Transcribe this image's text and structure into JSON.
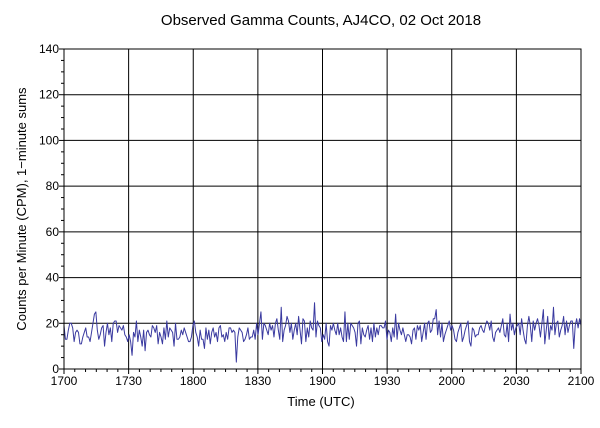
{
  "chart_data": {
    "type": "line",
    "title": "Observed Gamma Counts, AJ4CO, 02 Oct 2018",
    "xlabel": "Time (UTC)",
    "ylabel": "Counts per Minute (CPM), 1−minute sums",
    "x_tick_labels": [
      "1700",
      "1730",
      "1800",
      "1830",
      "1900",
      "1930",
      "2000",
      "2030",
      "2100"
    ],
    "y_tick_labels": [
      "0",
      "20",
      "40",
      "60",
      "80",
      "100",
      "120",
      "140"
    ],
    "x_range_minutes": [
      0,
      240
    ],
    "ylim": [
      0,
      140
    ],
    "grid": true,
    "series_color": "#3a3aa0",
    "series": [
      {
        "values": [
          19,
          13,
          13,
          17,
          20,
          20,
          18,
          12,
          16,
          17,
          16,
          11,
          11,
          14,
          16,
          18,
          14,
          14,
          12,
          16,
          20,
          24,
          25,
          17,
          13,
          15,
          18,
          19,
          10,
          16,
          20,
          15,
          18,
          12,
          20,
          21,
          21,
          16,
          19,
          18,
          17,
          19,
          15,
          14,
          12,
          15,
          12,
          6,
          16,
          14,
          21,
          12,
          17,
          14,
          10,
          17,
          8,
          16,
          17,
          15,
          14,
          19,
          18,
          16,
          19,
          11,
          16,
          14,
          11,
          18,
          13,
          21,
          14,
          18,
          17,
          16,
          10,
          20,
          13,
          13,
          14,
          17,
          15,
          18,
          16,
          14,
          12,
          12,
          14,
          19,
          21,
          16,
          14,
          10,
          17,
          13,
          13,
          9,
          18,
          13,
          17,
          11,
          16,
          18,
          14,
          16,
          12,
          18,
          19,
          14,
          15,
          12,
          16,
          13,
          18,
          18,
          16,
          17,
          16,
          3,
          14,
          18,
          17,
          16,
          12,
          13,
          15,
          18,
          13,
          14,
          14,
          17,
          13,
          20,
          15,
          20,
          25,
          13,
          20,
          19,
          17,
          15,
          20,
          17,
          19,
          14,
          20,
          22,
          17,
          13,
          27,
          12,
          17,
          19,
          23,
          21,
          16,
          20,
          13,
          17,
          20,
          15,
          23,
          17,
          11,
          22,
          21,
          12,
          18,
          14,
          21,
          18,
          17,
          29,
          14,
          21,
          19,
          18,
          12,
          15,
          13,
          20,
          12,
          10,
          19,
          17,
          20,
          17,
          15,
          20,
          15,
          18,
          14,
          12,
          25,
          12,
          20,
          13,
          20,
          19,
          18,
          16,
          10,
          20,
          21,
          11,
          18,
          15,
          14,
          17,
          19,
          13,
          18,
          12,
          20,
          14,
          18,
          15,
          19,
          19,
          18,
          18,
          21,
          13,
          17,
          16,
          12,
          18,
          14,
          24,
          13,
          20,
          17,
          15,
          18,
          15,
          12,
          15,
          15,
          14,
          11,
          17,
          18,
          13,
          19,
          17,
          19,
          12,
          16,
          20,
          13,
          20,
          21,
          16,
          17,
          22,
          22,
          26,
          15,
          21,
          14,
          20,
          12,
          15,
          17,
          19,
          21,
          17,
          19,
          17,
          13,
          12,
          16,
          18,
          20,
          12,
          14,
          17,
          19,
          21,
          12,
          10,
          18,
          17,
          14,
          15,
          15,
          18,
          19,
          17,
          16,
          19,
          21,
          20,
          17,
          21,
          14,
          12,
          16,
          17,
          18,
          16,
          19,
          22,
          15,
          14,
          20,
          12,
          24,
          17,
          20,
          15,
          18,
          19,
          20,
          15,
          22,
          17,
          13,
          11,
          19,
          23,
          19,
          12,
          21,
          17,
          20,
          22,
          19,
          14,
          20,
          26,
          11,
          17,
          23,
          13,
          19,
          17,
          27,
          15,
          20,
          21,
          14,
          17,
          19,
          23,
          15,
          21,
          16,
          19,
          21,
          21,
          9,
          19,
          22,
          18,
          22,
          19
        ]
      }
    ]
  }
}
